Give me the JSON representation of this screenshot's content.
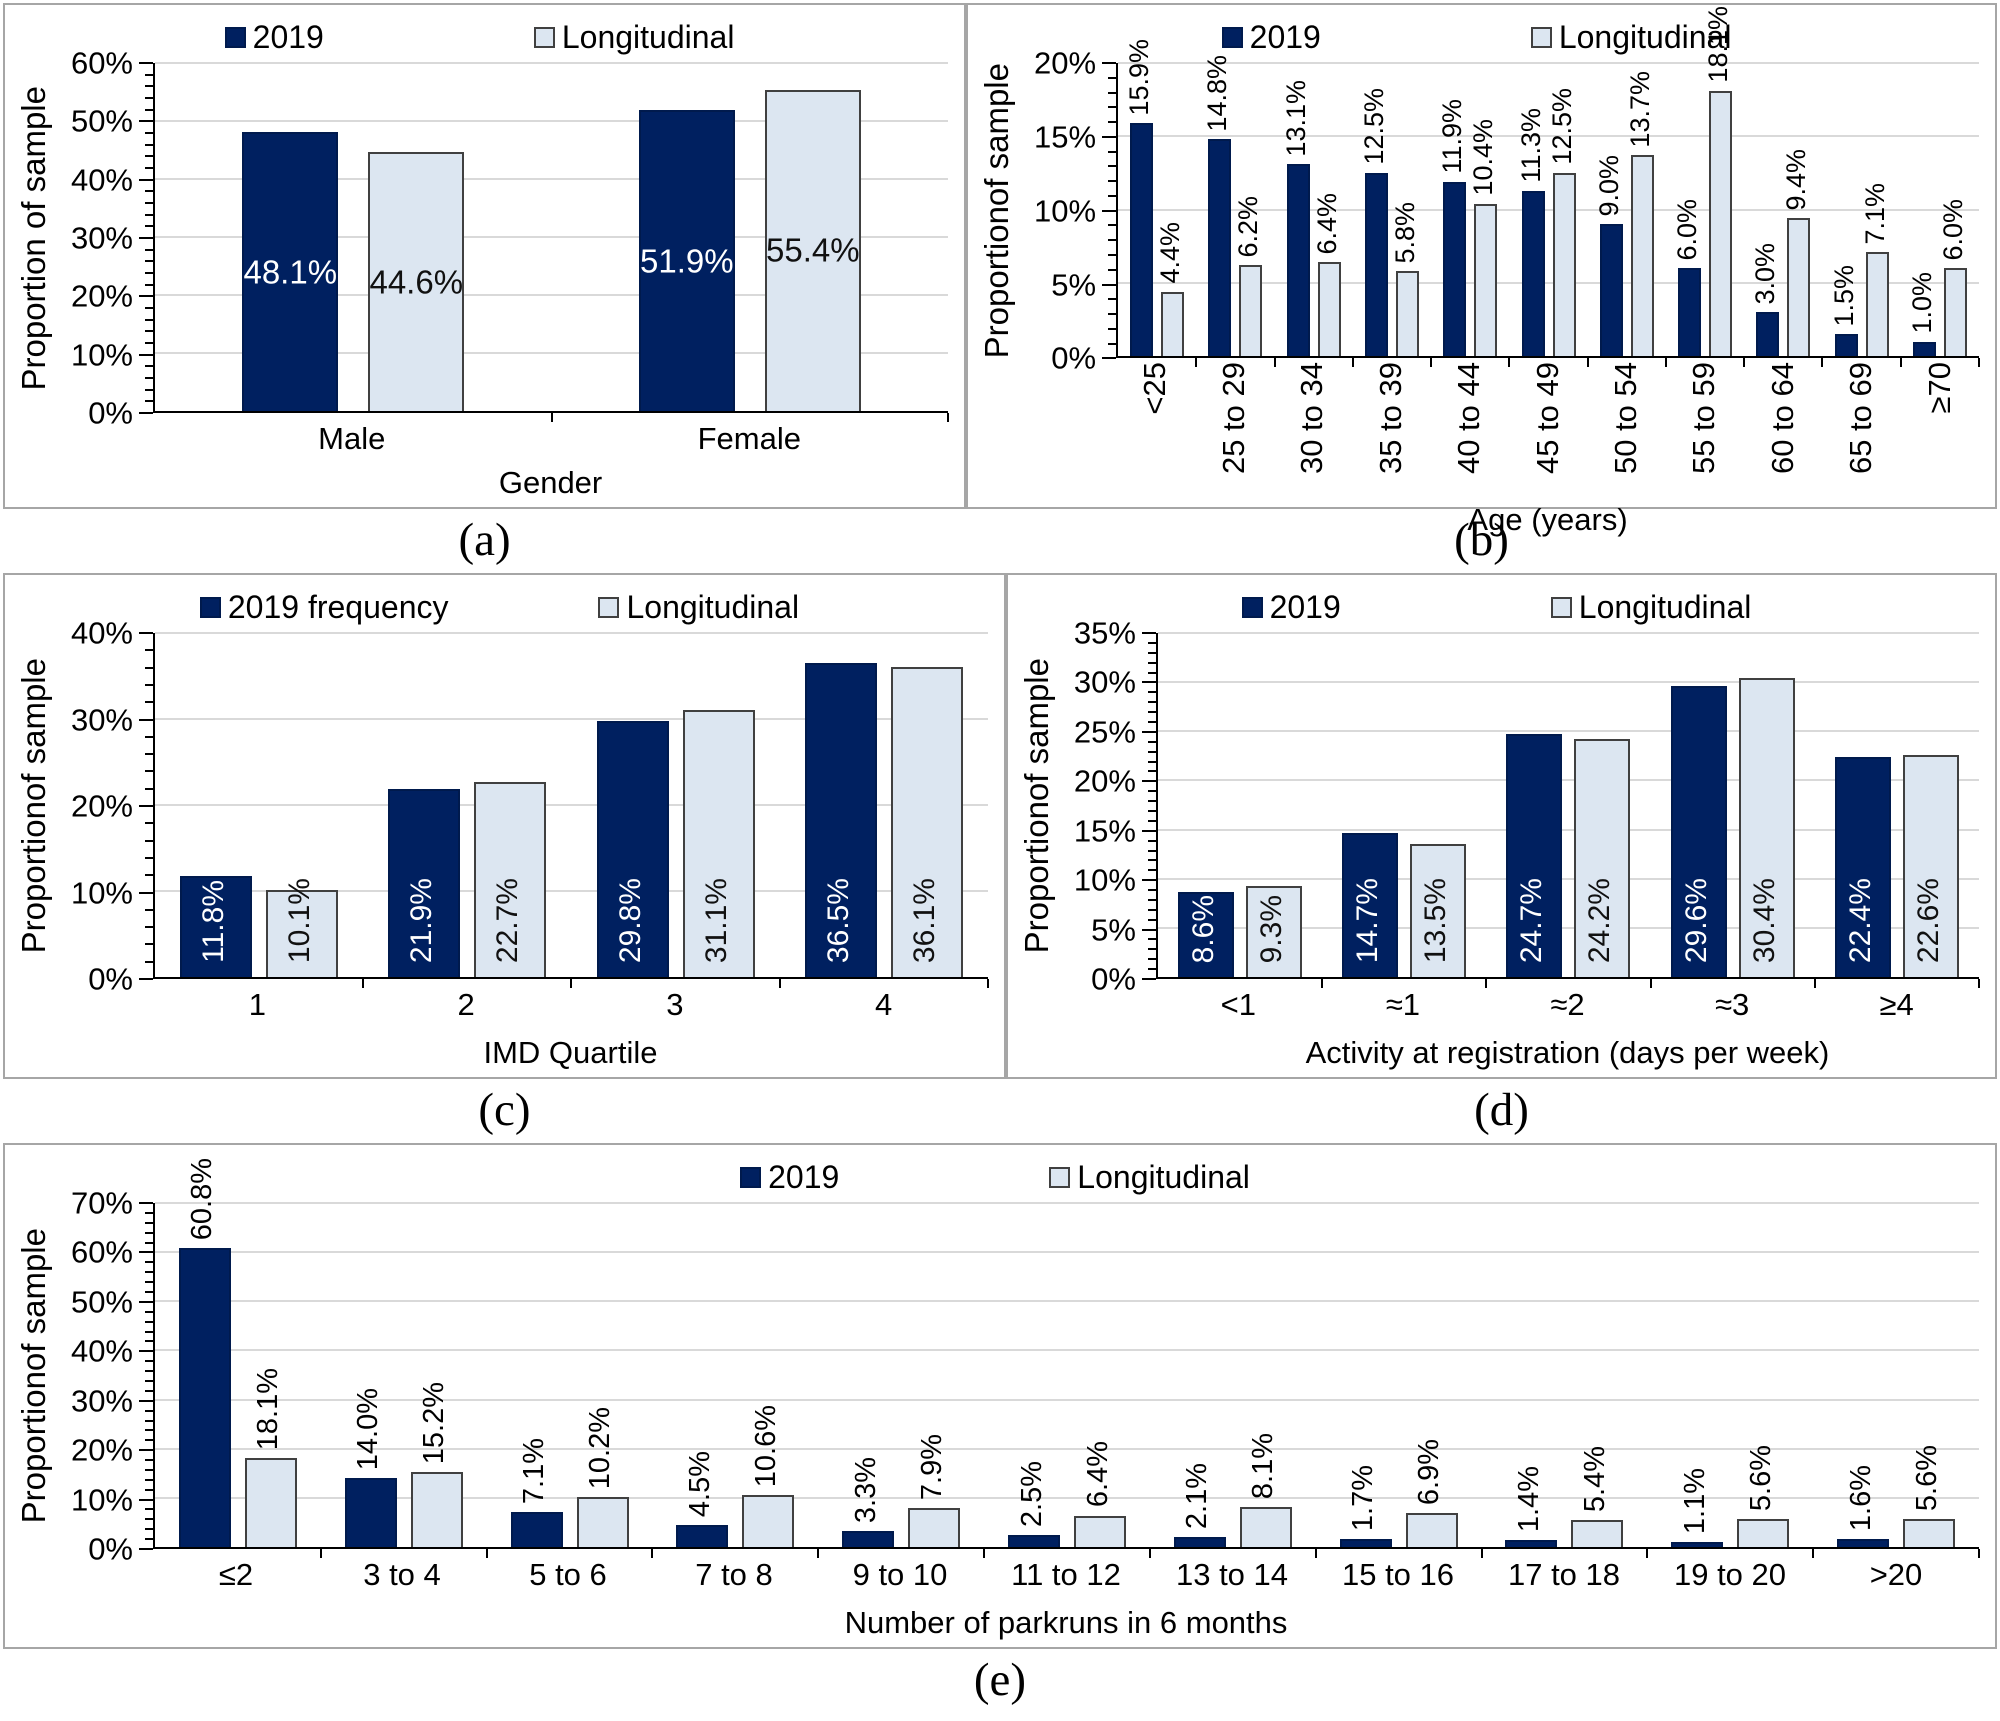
{
  "colors": {
    "series_2019": "#002060",
    "series_2019_border": "#001a4d",
    "series_longitudinal": "#dce6f1",
    "series_longitudinal_border": "#404040",
    "gridline": "#d9d9d9",
    "axis": "#000000",
    "panel_border": "#a6a6a6",
    "label_on_dark": "#ffffff",
    "label_on_light": "#111111"
  },
  "figure": {
    "panels": [
      {
        "id": "a",
        "caption": "(a)",
        "legend": [
          {
            "label": "2019"
          },
          {
            "label": "Longitudinal"
          }
        ],
        "y_title": "Proportion of sample",
        "x_title": "Gender",
        "chart_data": {
          "type": "bar",
          "categories": [
            "Male",
            "Female"
          ],
          "series": [
            {
              "name": "2019",
              "values": [
                48.1,
                51.9
              ]
            },
            {
              "name": "Longitudinal",
              "values": [
                44.6,
                55.4
              ]
            }
          ],
          "ylabel": "Proportion of sample",
          "xlabel": "Gender",
          "ylim": [
            0,
            60
          ],
          "y_major_step": 10,
          "y_minor_step": 2,
          "grid": true,
          "legend_position": "top",
          "value_label_format": "one-decimal-percent"
        }
      },
      {
        "id": "b",
        "caption": "(b)",
        "legend": [
          {
            "label": "2019"
          },
          {
            "label": "Longitudinal"
          }
        ],
        "y_title": "Proportionof sample",
        "x_title": "Age (years)",
        "chart_data": {
          "type": "bar",
          "categories": [
            "<25",
            "25 to 29",
            "30 to 34",
            "35 to 39",
            "40 to 44",
            "45 to 49",
            "50 to 54",
            "55 to 59",
            "60 to 64",
            "65 to 69",
            "≥70"
          ],
          "series": [
            {
              "name": "2019",
              "values": [
                15.9,
                14.8,
                13.1,
                12.5,
                11.9,
                11.3,
                9.0,
                6.0,
                3.0,
                1.5,
                1.0
              ]
            },
            {
              "name": "Longitudinal",
              "values": [
                4.4,
                6.2,
                6.4,
                5.8,
                10.4,
                12.5,
                13.7,
                18.1,
                9.4,
                7.1,
                6.0
              ]
            }
          ],
          "ylabel": "Proportionof sample",
          "xlabel": "Age (years)",
          "ylim": [
            0,
            20
          ],
          "y_major_step": 5,
          "y_minor_step": 1,
          "grid": true,
          "legend_position": "top",
          "value_label_format": "one-decimal-percent"
        }
      },
      {
        "id": "c",
        "caption": "(c)",
        "legend": [
          {
            "label": "2019 frequency"
          },
          {
            "label": "Longitudinal"
          }
        ],
        "y_title": "Proportionof sample",
        "x_title": "IMD Quartile",
        "chart_data": {
          "type": "bar",
          "categories": [
            "1",
            "2",
            "3",
            "4"
          ],
          "series": [
            {
              "name": "2019 frequency",
              "values": [
                11.8,
                21.9,
                29.8,
                36.5
              ]
            },
            {
              "name": "Longitudinal",
              "values": [
                10.1,
                22.7,
                31.1,
                36.1
              ]
            }
          ],
          "ylabel": "Proportionof sample",
          "xlabel": "IMD Quartile",
          "ylim": [
            0,
            40
          ],
          "y_major_step": 10,
          "y_minor_step": 2,
          "grid": true,
          "legend_position": "top",
          "value_label_format": "one-decimal-percent"
        }
      },
      {
        "id": "d",
        "caption": "(d)",
        "legend": [
          {
            "label": "2019"
          },
          {
            "label": "Longitudinal"
          }
        ],
        "y_title": "Proportionof sample",
        "x_title": "Activity at registration (days per week)",
        "chart_data": {
          "type": "bar",
          "categories": [
            "<1",
            "≈1",
            "≈2",
            "≈3",
            "≥4"
          ],
          "series": [
            {
              "name": "2019",
              "values": [
                8.6,
                14.7,
                24.7,
                29.6,
                22.4
              ]
            },
            {
              "name": "Longitudinal",
              "values": [
                9.3,
                13.5,
                24.2,
                30.4,
                22.6
              ]
            }
          ],
          "ylabel": "Proportionof sample",
          "xlabel": "Activity at registration (days per week)",
          "ylim": [
            0,
            35
          ],
          "y_major_step": 5,
          "y_minor_step": 1,
          "grid": true,
          "legend_position": "top",
          "value_label_format": "one-decimal-percent"
        }
      },
      {
        "id": "e",
        "caption": "(e)",
        "legend": [
          {
            "label": "2019"
          },
          {
            "label": "Longitudinal"
          }
        ],
        "y_title": "Proportionof sample",
        "x_title": "Number of parkruns in 6 months",
        "chart_data": {
          "type": "bar",
          "categories": [
            "≤2",
            "3 to 4",
            "5 to 6",
            "7 to 8",
            "9 to 10",
            "11 to 12",
            "13 to 14",
            "15 to 16",
            "17 to 18",
            "19 to 20",
            ">20"
          ],
          "series": [
            {
              "name": "2019",
              "values": [
                60.8,
                14.0,
                7.1,
                4.5,
                3.3,
                2.5,
                2.1,
                1.7,
                1.4,
                1.1,
                1.6
              ]
            },
            {
              "name": "Longitudinal",
              "values": [
                18.1,
                15.2,
                10.2,
                10.6,
                7.9,
                6.4,
                8.1,
                6.9,
                5.4,
                5.6,
                5.6
              ]
            }
          ],
          "ylabel": "Proportionof sample",
          "xlabel": "Number of parkruns in 6 months",
          "ylim": [
            0,
            70
          ],
          "y_major_step": 10,
          "y_minor_step": 2,
          "grid": true,
          "legend_position": "top",
          "value_label_format": "one-decimal-percent"
        }
      }
    ]
  }
}
